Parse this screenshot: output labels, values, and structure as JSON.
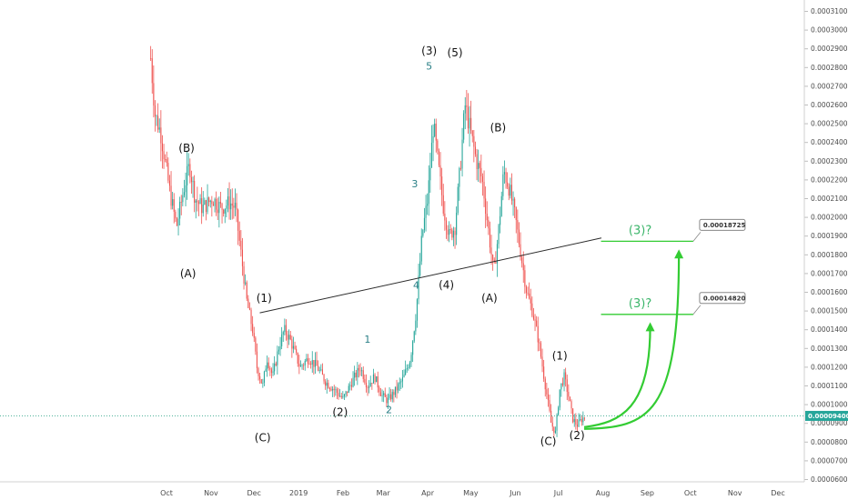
{
  "chart_data": {
    "type": "candlestick",
    "x_ticks": [
      "Oct",
      "Nov",
      "Dec",
      "2019",
      "Feb",
      "Mar",
      "Apr",
      "May",
      "Jun",
      "Jul",
      "Aug",
      "Sep",
      "Oct",
      "Nov",
      "Dec"
    ],
    "y_ticks": [
      "0.00031000",
      "0.00030000",
      "0.00029000",
      "0.00028000",
      "0.00027000",
      "0.00026000",
      "0.00025000",
      "0.00024000",
      "0.00023000",
      "0.00022000",
      "0.00021000",
      "0.00020000",
      "0.00019000",
      "0.00018000",
      "0.00017000",
      "0.00016000",
      "0.00015000",
      "0.00014000",
      "0.00013000",
      "0.00012000",
      "0.00011000",
      "0.00010000",
      "0.00009000",
      "0.00008000",
      "0.00007000",
      "0.00006000"
    ],
    "ylim": [
      6e-05,
      0.00031
    ],
    "current_price": "0.00009400",
    "current_price_value": 9.4e-05,
    "price_path": [
      [
        "2018-09-20",
        0.000285
      ],
      [
        "2018-09-23",
        0.000255
      ],
      [
        "2018-09-27",
        0.000245
      ],
      [
        "2018-10-03",
        0.000215
      ],
      [
        "2018-10-08",
        0.000195
      ],
      [
        "2018-10-13",
        0.000215
      ],
      [
        "2018-10-17",
        0.000228
      ],
      [
        "2018-10-21",
        0.00021
      ],
      [
        "2018-10-26",
        0.000205
      ],
      [
        "2018-11-02",
        0.00021
      ],
      [
        "2018-11-08",
        0.000205
      ],
      [
        "2018-11-14",
        0.000208
      ],
      [
        "2018-11-18",
        0.000205
      ],
      [
        "2018-11-22",
        0.00018
      ],
      [
        "2018-11-26",
        0.000155
      ],
      [
        "2018-11-30",
        0.00014
      ],
      [
        "2018-12-03",
        0.00012
      ],
      [
        "2018-12-07",
        0.00011
      ],
      [
        "2018-12-10",
        0.000125
      ],
      [
        "2018-12-14",
        0.000115
      ],
      [
        "2018-12-18",
        0.00013
      ],
      [
        "2018-12-22",
        0.00014
      ],
      [
        "2018-12-26",
        0.000135
      ],
      [
        "2019-01-02",
        0.00012
      ],
      [
        "2019-01-08",
        0.000125
      ],
      [
        "2019-01-14",
        0.00012
      ],
      [
        "2019-01-20",
        0.000112
      ],
      [
        "2019-01-26",
        0.000108
      ],
      [
        "2019-02-01",
        0.000103
      ],
      [
        "2019-02-07",
        0.000112
      ],
      [
        "2019-02-13",
        0.00012
      ],
      [
        "2019-02-18",
        0.00011
      ],
      [
        "2019-02-23",
        0.000115
      ],
      [
        "2019-02-28",
        0.000105
      ],
      [
        "2019-03-04",
        0.000102
      ],
      [
        "2019-03-10",
        0.000108
      ],
      [
        "2019-03-15",
        0.000114
      ],
      [
        "2019-03-20",
        0.000125
      ],
      [
        "2019-03-24",
        0.00015
      ],
      [
        "2019-03-28",
        0.00019
      ],
      [
        "2019-04-01",
        0.00021
      ],
      [
        "2019-04-05",
        0.00025
      ],
      [
        "2019-04-08",
        0.00023
      ],
      [
        "2019-04-12",
        0.000205
      ],
      [
        "2019-04-16",
        0.00019
      ],
      [
        "2019-04-20",
        0.000195
      ],
      [
        "2019-04-24",
        0.00023
      ],
      [
        "2019-04-27",
        0.00026
      ],
      [
        "2019-05-01",
        0.000245
      ],
      [
        "2019-05-05",
        0.00023
      ],
      [
        "2019-05-09",
        0.00022
      ],
      [
        "2019-05-13",
        0.000195
      ],
      [
        "2019-05-17",
        0.00017
      ],
      [
        "2019-05-20",
        0.00019
      ],
      [
        "2019-05-24",
        0.000225
      ],
      [
        "2019-05-28",
        0.000215
      ],
      [
        "2019-06-01",
        0.0002
      ],
      [
        "2019-06-05",
        0.00018
      ],
      [
        "2019-06-09",
        0.00016
      ],
      [
        "2019-06-13",
        0.00015
      ],
      [
        "2019-06-17",
        0.000135
      ],
      [
        "2019-06-20",
        0.00012
      ],
      [
        "2019-06-23",
        0.000105
      ],
      [
        "2019-06-26",
        9e-05
      ],
      [
        "2019-06-29",
        8.5e-05
      ],
      [
        "2019-07-02",
        0.000108
      ],
      [
        "2019-07-05",
        0.000115
      ],
      [
        "2019-07-08",
        0.000105
      ],
      [
        "2019-07-11",
        9.25e-05
      ],
      [
        "2019-07-14",
        8.9e-05
      ],
      [
        "2019-07-17",
        9.2e-05
      ],
      [
        "2019-07-20",
        9.4e-05
      ]
    ],
    "trendline": [
      [
        "2018-12-05",
        0.000149
      ],
      [
        "2019-07-31",
        0.000189
      ]
    ],
    "wave_labels_black": [
      {
        "text": "(B)",
        "date": "2018-10-15",
        "price": 0.000235
      },
      {
        "text": "(A)",
        "date": "2018-10-16",
        "price": 0.000168
      },
      {
        "text": "(1)",
        "date": "2018-12-08",
        "price": 0.000155
      },
      {
        "text": "(C)",
        "date": "2018-12-07",
        "price": 8.05e-05
      },
      {
        "text": "(2)",
        "date": "2019-01-30",
        "price": 9.4e-05
      },
      {
        "text": "(3)",
        "date": "2019-04-02",
        "price": 0.000287
      },
      {
        "text": "(5)",
        "date": "2019-04-20",
        "price": 0.000286
      },
      {
        "text": "(4)",
        "date": "2019-04-14",
        "price": 0.000162
      },
      {
        "text": "(B)",
        "date": "2019-05-20",
        "price": 0.000246
      },
      {
        "text": "(A)",
        "date": "2019-05-14",
        "price": 0.000155
      },
      {
        "text": "(C)",
        "date": "2019-06-24",
        "price": 7.85e-05
      },
      {
        "text": "(1)",
        "date": "2019-07-02",
        "price": 0.000124
      },
      {
        "text": "(2)",
        "date": "2019-07-14",
        "price": 8.15e-05
      }
    ],
    "wave_labels_teal": [
      {
        "text": "1",
        "date": "2019-02-18",
        "price": 0.000133
      },
      {
        "text": "2",
        "date": "2019-03-05",
        "price": 9.55e-05
      },
      {
        "text": "3",
        "date": "2019-03-23",
        "price": 0.000216
      },
      {
        "text": "4",
        "date": "2019-03-24",
        "price": 0.000162
      },
      {
        "text": "5",
        "date": "2019-04-02",
        "price": 0.000279
      }
    ],
    "targets": [
      {
        "label": "(3)?",
        "value": 0.00018725,
        "price_text": "0.00018725"
      },
      {
        "label": "(3)?",
        "value": 0.0001482,
        "price_text": "0.00014820"
      }
    ],
    "colors": {
      "up": "#26a69a",
      "down": "#ef5350",
      "trendline": "#2b2b2b",
      "target": "#33cc33",
      "price_line": "#3aa98f",
      "price_tag": "#26a69a",
      "label_teal": "#2a7f86"
    }
  }
}
